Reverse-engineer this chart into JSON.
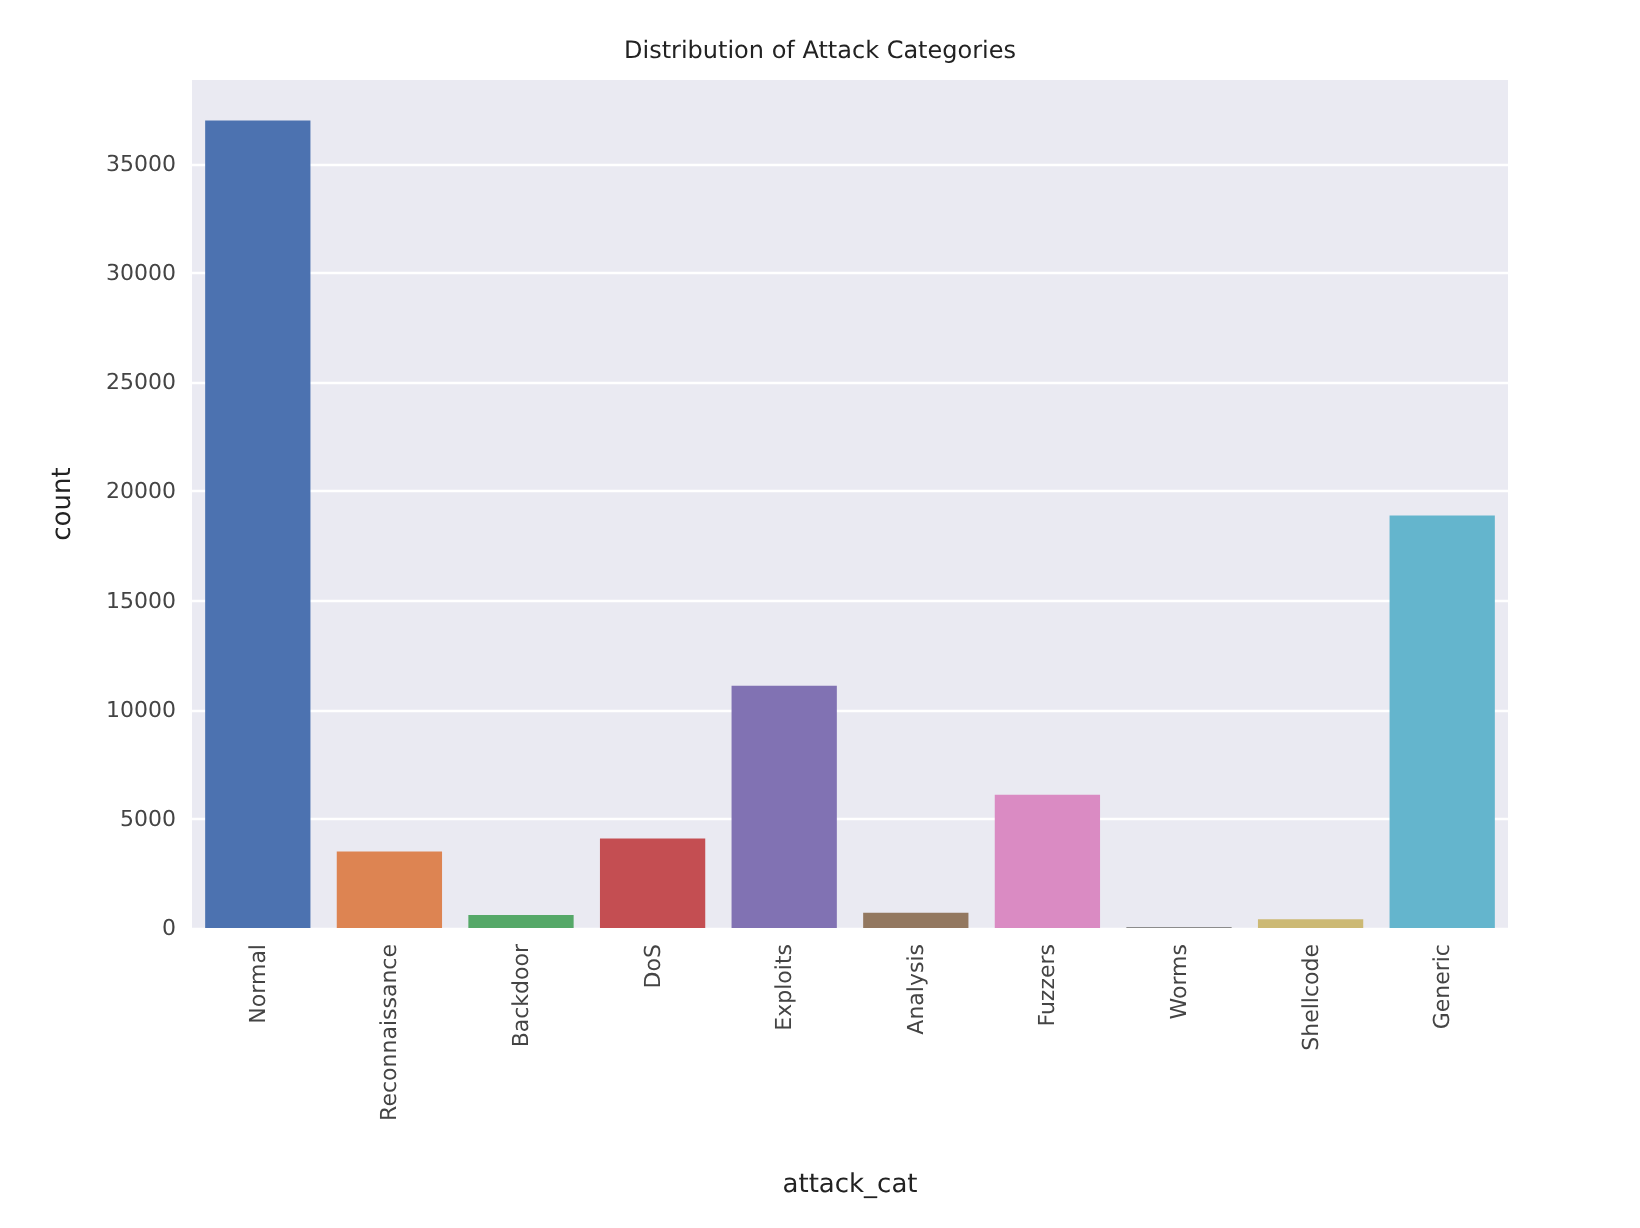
{
  "chart_data": {
    "type": "bar",
    "title": "Distribution of Attack Categories",
    "xlabel": "attack_cat",
    "ylabel": "count",
    "categories": [
      "Normal",
      "Reconnaissance",
      "Backdoor",
      "DoS",
      "Exploits",
      "Analysis",
      "Fuzzers",
      "Worms",
      "Shellcode",
      "Generic"
    ],
    "values": [
      37000,
      3500,
      600,
      4100,
      11100,
      700,
      6100,
      50,
      400,
      18900
    ],
    "colors": [
      "#4c72b0",
      "#dd8452",
      "#55a868",
      "#c44e52",
      "#8172b3",
      "#937860",
      "#da8bc3",
      "#8c8c8c",
      "#ccb974",
      "#64b5cd"
    ],
    "ylim": [
      0,
      38850
    ],
    "yticks": [
      0,
      5000,
      10000,
      15000,
      20000,
      25000,
      30000,
      35000
    ],
    "grid": "y"
  }
}
